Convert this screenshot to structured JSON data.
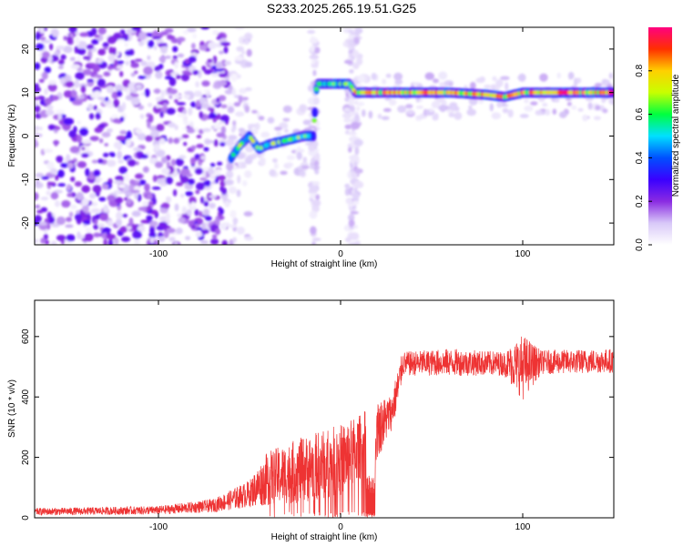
{
  "title": "S233.2025.265.19.51.G25",
  "chart_data": [
    {
      "type": "heatmap",
      "xlabel": "Height of straight line (km)",
      "ylabel": "Frequency (Hz)",
      "xlim": [
        -168,
        150
      ],
      "ylim": [
        -25,
        25
      ],
      "xticks": [
        -100,
        0,
        100
      ],
      "yticks": [
        -20,
        -10,
        0,
        10,
        20
      ],
      "colorbar": {
        "label": "Normalized spectral amplitude",
        "range": [
          0,
          1
        ],
        "ticks": [
          0.0,
          0.2,
          0.4,
          0.6,
          0.8
        ],
        "colors": [
          "#ffffff",
          "#d8c8f8",
          "#8a2be2",
          "#3a00ff",
          "#0050ff",
          "#00e0ff",
          "#00ff40",
          "#c8ff00",
          "#ffd000",
          "#ff3000",
          "#ff0080"
        ]
      },
      "ridge": [
        {
          "x": -60,
          "y": -5
        },
        {
          "x": -55,
          "y": -2
        },
        {
          "x": -50,
          "y": 0
        },
        {
          "x": -45,
          "y": -3
        },
        {
          "x": -40,
          "y": -2
        },
        {
          "x": -30,
          "y": -1
        },
        {
          "x": -20,
          "y": 0
        },
        {
          "x": -15,
          "y": 0
        },
        {
          "x": -13,
          "y": 12
        },
        {
          "x": 0,
          "y": 12
        },
        {
          "x": 5,
          "y": 12
        },
        {
          "x": 8,
          "y": 10
        },
        {
          "x": 40,
          "y": 10
        },
        {
          "x": 60,
          "y": 10
        },
        {
          "x": 80,
          "y": 9.5
        },
        {
          "x": 90,
          "y": 9
        },
        {
          "x": 100,
          "y": 10
        },
        {
          "x": 120,
          "y": 10
        },
        {
          "x": 150,
          "y": 10
        }
      ]
    },
    {
      "type": "line",
      "xlabel": "Height of straight line (km)",
      "ylabel": "SNR (10 * v/v)",
      "xlim": [
        -168,
        150
      ],
      "ylim": [
        0,
        720
      ],
      "xticks": [
        -100,
        0,
        100
      ],
      "yticks": [
        0,
        200,
        400,
        600
      ],
      "color": "#ee3333",
      "envelope": [
        {
          "x": -168,
          "mean": 20,
          "amp": 12
        },
        {
          "x": -100,
          "mean": 25,
          "amp": 14
        },
        {
          "x": -70,
          "mean": 40,
          "amp": 22
        },
        {
          "x": -50,
          "mean": 80,
          "amp": 45
        },
        {
          "x": -40,
          "mean": 130,
          "amp": 90
        },
        {
          "x": -20,
          "mean": 160,
          "amp": 110
        },
        {
          "x": 0,
          "mean": 190,
          "amp": 120
        },
        {
          "x": 10,
          "mean": 230,
          "amp": 110
        },
        {
          "x": 20,
          "mean": 290,
          "amp": 100
        },
        {
          "x": 28,
          "mean": 350,
          "amp": 60
        },
        {
          "x": 32,
          "mean": 440,
          "amp": 70
        },
        {
          "x": 34,
          "mean": 510,
          "amp": 40
        },
        {
          "x": 60,
          "mean": 515,
          "amp": 45
        },
        {
          "x": 90,
          "mean": 510,
          "amp": 40
        },
        {
          "x": 100,
          "mean": 500,
          "amp": 110
        },
        {
          "x": 110,
          "mean": 515,
          "amp": 40
        },
        {
          "x": 150,
          "mean": 520,
          "amp": 40
        }
      ]
    }
  ]
}
